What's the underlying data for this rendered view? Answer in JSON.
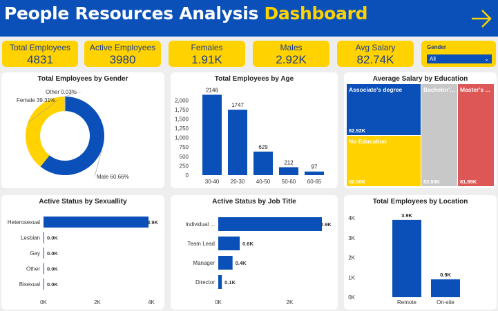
{
  "header": {
    "title_main": "People Resources Analysis",
    "title_accent": "Dashboard",
    "nav_icon": "arrow-right-icon"
  },
  "kpis": [
    {
      "label": "Total Employees",
      "value": "4831"
    },
    {
      "label": "Active Employees",
      "value": "3980"
    },
    {
      "label": "Females",
      "value": "1.91K"
    },
    {
      "label": "Males",
      "value": "2.92K"
    },
    {
      "label": "Avg Salary",
      "value": "82.74K"
    }
  ],
  "slicer": {
    "label": "Gender",
    "selected": "All"
  },
  "colors": {
    "blue": "#0a50b8",
    "yellow": "#ffd200",
    "gray": "#c8c8c8",
    "red": "#dd5756"
  },
  "chart_data": [
    {
      "type": "pie",
      "title": "Total Employees by Gender",
      "slices": [
        {
          "label": "Male",
          "value": 60.66,
          "display": "Male 60.66%",
          "color": "#0a50b8"
        },
        {
          "label": "Female",
          "value": 39.31,
          "display": "Female 39.31%",
          "color": "#ffd200"
        },
        {
          "label": "Other",
          "value": 0.03,
          "display": "Other 0.03%",
          "color": "#c8c8c8"
        }
      ]
    },
    {
      "type": "bar",
      "title": "Total Employees by Age",
      "categories": [
        "30-40",
        "20-30",
        "40-50",
        "50-60",
        "60-65"
      ],
      "values": [
        2146,
        1747,
        629,
        212,
        97
      ],
      "yticks": [
        "0",
        "250",
        "500",
        "750",
        "1,000",
        "1,250",
        "1,500",
        "1,750",
        "2,000"
      ],
      "ylim": [
        0,
        2300
      ]
    },
    {
      "type": "treemap",
      "title": "Average Salary by Education",
      "items": [
        {
          "label": "Associate's degree",
          "value": "82.92K",
          "color": "#0a50b8"
        },
        {
          "label": "No Education",
          "value": "82.90K",
          "color": "#ffd200"
        },
        {
          "label": "Bachelor'...",
          "value": "82.88K",
          "color": "#c8c8c8"
        },
        {
          "label": "Master's ...",
          "value": "81.99K",
          "color": "#dd5756"
        }
      ]
    },
    {
      "type": "bar",
      "orientation": "horizontal",
      "title": "Active Status by Sexuallity",
      "categories": [
        "Heterosexual",
        "Lesbian",
        "Gay",
        "Other",
        "Bisexual"
      ],
      "values": [
        3.9,
        0,
        0,
        0,
        0
      ],
      "labels": [
        "3.9K",
        "0.0K",
        "0.0K",
        "0.0K",
        "0.0K"
      ],
      "xticks": [
        "0K",
        "2K",
        "4K"
      ],
      "xlim": [
        0,
        4
      ]
    },
    {
      "type": "bar",
      "orientation": "horizontal",
      "title": "Active Status by Job Title",
      "categories": [
        "Individual ...",
        "Team Lead",
        "Manager",
        "Director"
      ],
      "values": [
        2.9,
        0.6,
        0.4,
        0.1
      ],
      "labels": [
        "2.9K",
        "0.6K",
        "0.4K",
        "0.1K"
      ],
      "xticks": [
        "0K",
        "2K"
      ],
      "xlim": [
        0,
        2.9
      ]
    },
    {
      "type": "bar",
      "title": "Total Employees by Location",
      "categories": [
        "Remote",
        "On-site"
      ],
      "values": [
        3.9,
        0.9
      ],
      "labels": [
        "3.9K",
        "0.9K"
      ],
      "yticks": [
        "0K",
        "1K",
        "2K",
        "3K",
        "4K"
      ],
      "ylim": [
        0,
        4
      ]
    }
  ]
}
